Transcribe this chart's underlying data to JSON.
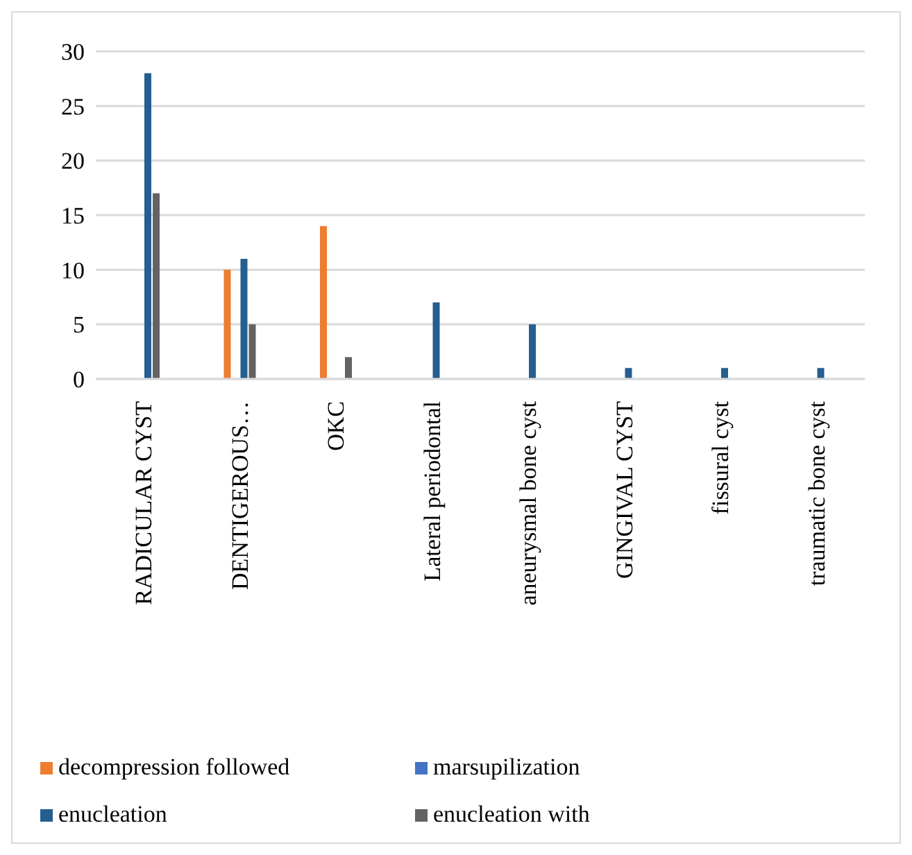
{
  "chart_data": {
    "type": "bar",
    "categories": [
      "RADICULAR CYST",
      "DENTIGEROUS…",
      "OKC",
      "Lateral periodontal",
      "aneurysmal bone cyst",
      "GINGIVAL CYST",
      "fissural cyst",
      "traumatic bone cyst"
    ],
    "series": [
      {
        "name": "decompression followed",
        "color": "#ed7d31",
        "values": [
          0,
          10,
          14,
          0,
          0,
          0,
          0,
          0
        ]
      },
      {
        "name": "marsupilization",
        "color": "#4472c4",
        "values": [
          0,
          0,
          0,
          0,
          0,
          0,
          0,
          0
        ]
      },
      {
        "name": "enucleation",
        "color": "#255e91",
        "values": [
          28,
          11,
          0,
          7,
          5,
          1,
          1,
          1
        ]
      },
      {
        "name": "enucleation with",
        "color": "#636363",
        "values": [
          17,
          5,
          2,
          0,
          0,
          0,
          0,
          0
        ]
      }
    ],
    "ylim": [
      0,
      30
    ],
    "yticks": [
      0,
      5,
      10,
      15,
      20,
      25,
      30
    ],
    "grid": "y",
    "legend": "bottom"
  }
}
